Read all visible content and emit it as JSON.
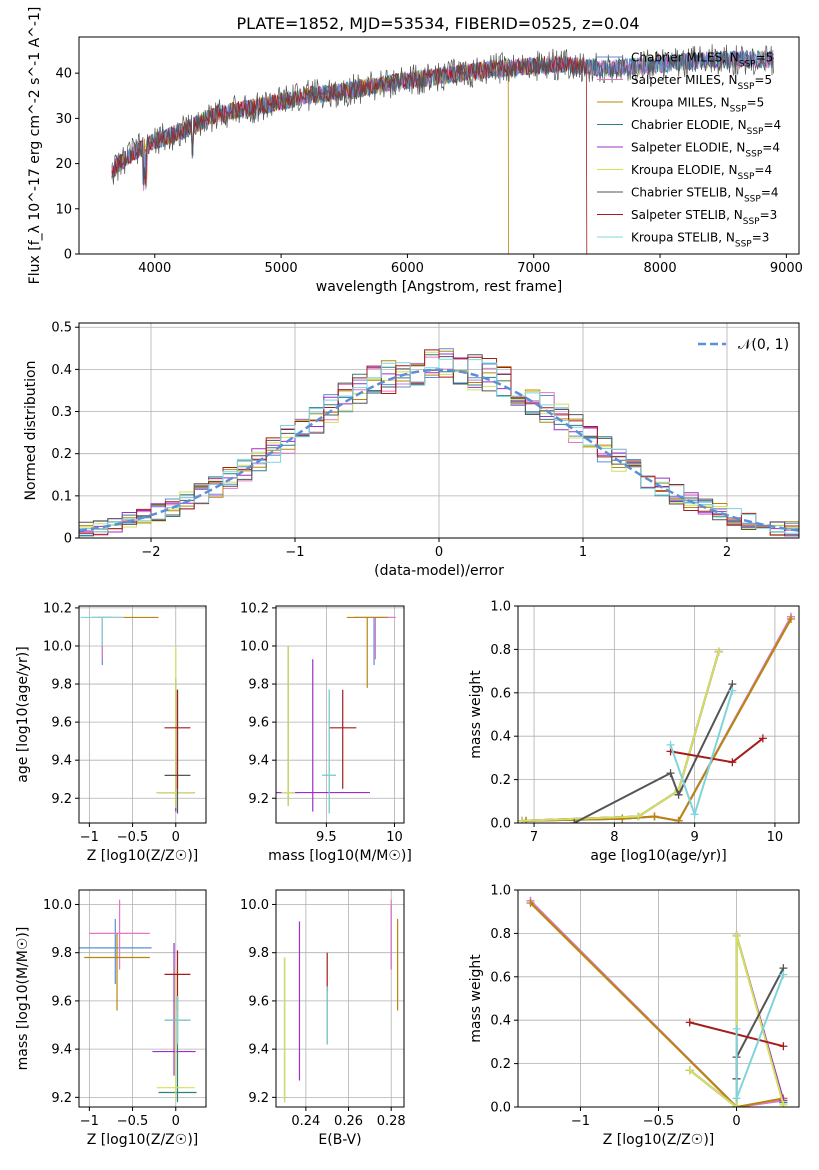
{
  "figure": {
    "title": "PLATE=1852, MJD=53534, FIBERID=0525, z=0.04"
  },
  "models": [
    {
      "name": "Chabrier MILES, N_SSP=5",
      "base": "Chabrier MILES, N",
      "sub": "SSP",
      "tail": "=5",
      "color": "#5b8fd6"
    },
    {
      "name": "Salpeter MILES, N_SSP=5",
      "base": "Salpeter MILES, N",
      "sub": "SSP",
      "tail": "=5",
      "color": "#e377c2"
    },
    {
      "name": "Kroupa MILES, N_SSP=5",
      "base": "Kroupa MILES, N",
      "sub": "SSP",
      "tail": "=5",
      "color": "#b8860b"
    },
    {
      "name": "Chabrier ELODIE, N_SSP=4",
      "base": "Chabrier ELODIE, N",
      "sub": "SSP",
      "tail": "=4",
      "color": "#2f8080"
    },
    {
      "name": "Salpeter ELODIE, N_SSP=4",
      "base": "Salpeter ELODIE, N",
      "sub": "SSP",
      "tail": "=4",
      "color": "#9b30c8"
    },
    {
      "name": "Kroupa ELODIE, N_SSP=4",
      "base": "Kroupa ELODIE, N",
      "sub": "SSP",
      "tail": "=4",
      "color": "#d4e05a"
    },
    {
      "name": "Chabrier STELIB, N_SSP=4",
      "base": "Chabrier STELIB, N",
      "sub": "SSP",
      "tail": "=4",
      "color": "#555555"
    },
    {
      "name": "Salpeter STELIB, N_SSP=3",
      "base": "Salpeter STELIB, N",
      "sub": "SSP",
      "tail": "=3",
      "color": "#a51c1c"
    },
    {
      "name": "Kroupa STELIB, N_SSP=3",
      "base": "Kroupa STELIB, N",
      "sub": "SSP",
      "tail": "=3",
      "color": "#7fd4dc"
    }
  ],
  "chart_data": [
    {
      "type": "line",
      "panel": "spectrum",
      "title": "PLATE=1852, MJD=53534, FIBERID=0525, z=0.04",
      "xlabel": "wavelength [Angstrom, rest frame]",
      "ylabel": "Flux [f_λ 10^-17 erg cm^-2 s^-1 A^-1]",
      "xlim": [
        3400,
        9100
      ],
      "ylim": [
        0,
        48
      ],
      "xticks": [
        4000,
        5000,
        6000,
        7000,
        8000,
        9000
      ],
      "yticks": [
        0,
        10,
        20,
        30,
        40
      ],
      "legend_position": "upper right",
      "continuum": {
        "x": [
          3650,
          3800,
          4000,
          4200,
          4500,
          4900,
          5200,
          5500,
          5900,
          6300,
          6700,
          7200,
          7600,
          8000,
          8400,
          8900
        ],
        "y": [
          18,
          22,
          25,
          27,
          31,
          33,
          35,
          36,
          38,
          39.5,
          41,
          42,
          41,
          42,
          43,
          43
        ]
      },
      "x_end": [
        8900,
        8900,
        6800,
        8900,
        8900,
        8900,
        8900,
        7420,
        8900
      ]
    },
    {
      "type": "line",
      "panel": "residuals",
      "xlabel": "(data-model)/error",
      "ylabel": "Normed distribution",
      "xlim": [
        -2.5,
        2.5
      ],
      "ylim": [
        0,
        0.51
      ],
      "xticks": [
        -2,
        -1,
        0,
        1,
        2
      ],
      "yticks": [
        0.0,
        0.1,
        0.2,
        0.3,
        0.4,
        0.5
      ],
      "legend_position": "upper right",
      "reference_curve": {
        "name": "𝒩(0, 1)",
        "mean": 0,
        "sigma": 1,
        "color": "#5b8fd6"
      },
      "histogram_step": 0.1
    },
    {
      "type": "scatter",
      "panel": "age_vs_Z",
      "xlabel": "Z [log10(Z/Z☉)]",
      "ylabel": "age  [log10(age/yr)]",
      "xlim": [
        -1.12,
        0.35
      ],
      "ylim": [
        9.07,
        10.21
      ],
      "xticks": [
        -1.0,
        -0.5,
        0.0
      ],
      "yticks": [
        9.2,
        9.4,
        9.6,
        9.8,
        10.0,
        10.2
      ],
      "points": [
        {
          "model": 0,
          "x": -0.85,
          "y": 10.15,
          "xerr": 0.12,
          "yerr_lo": 0.25,
          "yerr_hi": 0
        },
        {
          "model": 1,
          "x": -0.85,
          "y": 10.15,
          "xerr": 0.12,
          "yerr_lo": 0.22,
          "yerr_hi": 0
        },
        {
          "model": 2,
          "x": -0.55,
          "y": 10.15,
          "xerr": 0.35,
          "yerr_lo": 0,
          "yerr_hi": 0
        },
        {
          "model": 3,
          "x": 0.0,
          "y": 9.23,
          "xerr": 0.22,
          "yerr_lo": 0.07,
          "yerr_hi": 0.6
        },
        {
          "model": 4,
          "x": 0.0,
          "y": 9.23,
          "xerr": 0.22,
          "yerr_lo": 0.1,
          "yerr_hi": 0.2
        },
        {
          "model": 5,
          "x": 0.0,
          "y": 9.23,
          "xerr": 0.22,
          "yerr_lo": 0.08,
          "yerr_hi": 0.77
        },
        {
          "model": 6,
          "x": 0.02,
          "y": 9.32,
          "xerr": 0.15,
          "yerr_lo": 0.2,
          "yerr_hi": 0.45
        },
        {
          "model": 7,
          "x": 0.02,
          "y": 9.57,
          "xerr": 0.15,
          "yerr_lo": 0.32,
          "yerr_hi": 0.2
        },
        {
          "model": 8,
          "x": -0.85,
          "y": 10.15,
          "xerr": 0.25,
          "yerr_lo": 0.15,
          "yerr_hi": 0
        }
      ]
    },
    {
      "type": "scatter",
      "panel": "age_vs_mass",
      "xlabel": "mass [log10(M/M☉)]",
      "ylabel": "",
      "xlim": [
        9.13,
        10.07
      ],
      "ylim": [
        9.07,
        10.21
      ],
      "xticks": [
        9.5,
        10.0
      ],
      "yticks": [
        9.2,
        9.4,
        9.6,
        9.8,
        10.0,
        10.2
      ],
      "points": [
        {
          "model": 0,
          "x": 9.85,
          "y": 10.15,
          "xerr": 0.15,
          "yerr_lo": 0.25,
          "yerr_hi": 0
        },
        {
          "model": 1,
          "x": 9.86,
          "y": 10.15,
          "xerr": 0.15,
          "yerr_lo": 0.22,
          "yerr_hi": 0
        },
        {
          "model": 2,
          "x": 9.8,
          "y": 10.15,
          "xerr": 0.15,
          "yerr_lo": 0.37,
          "yerr_hi": 0
        },
        {
          "model": 3,
          "x": 9.22,
          "y": 9.23,
          "xerr": 0.08,
          "yerr_lo": 0.07,
          "yerr_hi": 0.77
        },
        {
          "model": 4,
          "x": 9.4,
          "y": 9.23,
          "xerr": 0.42,
          "yerr_lo": 0.1,
          "yerr_hi": 0.7
        },
        {
          "model": 5,
          "x": 9.22,
          "y": 9.23,
          "xerr": 0.05,
          "yerr_lo": 0.07,
          "yerr_hi": 0.77
        },
        {
          "model": 6,
          "x": 9.52,
          "y": 9.32,
          "xerr": 0.05,
          "yerr_lo": 0.2,
          "yerr_hi": 0.45
        },
        {
          "model": 7,
          "x": 9.62,
          "y": 9.57,
          "xerr": 0.1,
          "yerr_lo": 0.32,
          "yerr_hi": 0.2
        },
        {
          "model": 8,
          "x": 9.52,
          "y": 9.32,
          "xerr": 0.05,
          "yerr_lo": 0.2,
          "yerr_hi": 0.45
        }
      ]
    },
    {
      "type": "line",
      "panel": "massweight_vs_age",
      "xlabel": "age  [log10(age/yr)]",
      "ylabel": "mass weight",
      "xlim": [
        6.8,
        10.3
      ],
      "ylim": [
        0,
        1.0
      ],
      "xticks": [
        7,
        8,
        9,
        10
      ],
      "yticks": [
        0.0,
        0.2,
        0.4,
        0.6,
        0.8,
        1.0
      ],
      "series": [
        {
          "model": 0,
          "x": [
            6.9,
            8.1,
            8.5,
            8.8,
            10.2
          ],
          "y": [
            0.01,
            0.02,
            0.03,
            0.01,
            0.95
          ]
        },
        {
          "model": 1,
          "x": [
            6.9,
            8.1,
            8.5,
            8.8,
            10.2
          ],
          "y": [
            0.01,
            0.02,
            0.03,
            0.01,
            0.95
          ]
        },
        {
          "model": 2,
          "x": [
            6.9,
            8.1,
            8.5,
            8.8,
            10.2
          ],
          "y": [
            0.01,
            0.02,
            0.03,
            0.01,
            0.94
          ]
        },
        {
          "model": 3,
          "x": [
            6.85,
            8.3,
            8.8,
            9.3
          ],
          "y": [
            0.01,
            0.03,
            0.15,
            0.79
          ]
        },
        {
          "model": 4,
          "x": [
            6.85,
            8.3,
            8.8,
            9.3
          ],
          "y": [
            0.01,
            0.03,
            0.15,
            0.79
          ]
        },
        {
          "model": 5,
          "x": [
            6.85,
            8.3,
            8.8,
            9.3
          ],
          "y": [
            0.01,
            0.03,
            0.15,
            0.79
          ]
        },
        {
          "model": 6,
          "x": [
            7.5,
            8.7,
            8.8,
            9.47
          ],
          "y": [
            0.0,
            0.23,
            0.13,
            0.64
          ]
        },
        {
          "model": 7,
          "x": [
            8.7,
            9.47,
            9.85
          ],
          "y": [
            0.33,
            0.28,
            0.39
          ]
        },
        {
          "model": 8,
          "x": [
            8.7,
            9.0,
            9.47
          ],
          "y": [
            0.36,
            0.04,
            0.61
          ]
        }
      ]
    },
    {
      "type": "scatter",
      "panel": "mass_vs_Z",
      "xlabel": "Z [log10(Z/Z☉)]",
      "ylabel": "mass [log10(M/M☉)]",
      "xlim": [
        -1.12,
        0.35
      ],
      "ylim": [
        9.16,
        10.06
      ],
      "xticks": [
        -1.0,
        -0.5,
        0.0
      ],
      "yticks": [
        9.2,
        9.4,
        9.6,
        9.8,
        10.0
      ],
      "points": [
        {
          "model": 0,
          "x": -0.7,
          "y": 9.82,
          "xerr": 0.42,
          "yerr_lo": 0.15,
          "yerr_hi": 0.12
        },
        {
          "model": 1,
          "x": -0.65,
          "y": 9.88,
          "xerr": 0.35,
          "yerr_lo": 0.15,
          "yerr_hi": 0.14
        },
        {
          "model": 2,
          "x": -0.68,
          "y": 9.78,
          "xerr": 0.38,
          "yerr_lo": 0.22,
          "yerr_hi": 0.1
        },
        {
          "model": 3,
          "x": 0.02,
          "y": 9.22,
          "xerr": 0.22,
          "yerr_lo": 0.04,
          "yerr_hi": 0.4
        },
        {
          "model": 4,
          "x": -0.02,
          "y": 9.39,
          "xerr": 0.25,
          "yerr_lo": 0.1,
          "yerr_hi": 0.45
        },
        {
          "model": 5,
          "x": 0.0,
          "y": 9.24,
          "xerr": 0.22,
          "yerr_lo": 0.05,
          "yerr_hi": 0.5
        },
        {
          "model": 6,
          "x": 0.02,
          "y": 9.52,
          "xerr": 0.15,
          "yerr_lo": 0.1,
          "yerr_hi": 0.1
        },
        {
          "model": 7,
          "x": 0.02,
          "y": 9.71,
          "xerr": 0.15,
          "yerr_lo": 0.15,
          "yerr_hi": 0.1
        },
        {
          "model": 8,
          "x": 0.02,
          "y": 9.52,
          "xerr": 0.15,
          "yerr_lo": 0.1,
          "yerr_hi": 0.1
        }
      ]
    },
    {
      "type": "scatter",
      "panel": "mass_vs_EBV",
      "xlabel": "E(B-V)",
      "ylabel": "",
      "xlim": [
        0.226,
        0.286
      ],
      "ylim": [
        9.16,
        10.06
      ],
      "xticks": [
        0.24,
        0.26,
        0.28
      ],
      "yticks": [
        9.2,
        9.4,
        9.6,
        9.8,
        10.0
      ],
      "points": [
        {
          "model": 0,
          "x": 0.28,
          "y": 9.88,
          "yerr_lo": 0.15,
          "yerr_hi": 0.12
        },
        {
          "model": 1,
          "x": 0.28,
          "y": 9.88,
          "yerr_lo": 0.15,
          "yerr_hi": 0.14
        },
        {
          "model": 2,
          "x": 0.283,
          "y": 9.76,
          "yerr_lo": 0.2,
          "yerr_hi": 0.18
        },
        {
          "model": 3,
          "x": 0.23,
          "y": 9.48,
          "yerr_lo": 0.3,
          "yerr_hi": 0.3
        },
        {
          "model": 4,
          "x": 0.237,
          "y": 9.6,
          "yerr_lo": 0.33,
          "yerr_hi": 0.33
        },
        {
          "model": 5,
          "x": 0.23,
          "y": 9.48,
          "yerr_lo": 0.3,
          "yerr_hi": 0.3
        },
        {
          "model": 6,
          "x": 0.25,
          "y": 9.54,
          "yerr_lo": 0.12,
          "yerr_hi": 0.12
        },
        {
          "model": 7,
          "x": 0.25,
          "y": 9.72,
          "yerr_lo": 0.08,
          "yerr_hi": 0.08
        },
        {
          "model": 8,
          "x": 0.25,
          "y": 9.54,
          "yerr_lo": 0.12,
          "yerr_hi": 0.12
        }
      ]
    },
    {
      "type": "line",
      "panel": "massweight_vs_Z",
      "xlabel": "Z [log10(Z/Z☉)]",
      "ylabel": "mass weight",
      "xlim": [
        -1.4,
        0.4
      ],
      "ylim": [
        0,
        1.0
      ],
      "xticks": [
        -1.0,
        -0.5,
        0.0
      ],
      "yticks": [
        0.0,
        0.2,
        0.4,
        0.6,
        0.8,
        1.0
      ],
      "series": [
        {
          "model": 0,
          "x": [
            -1.32,
            0.0,
            0.3
          ],
          "y": [
            0.95,
            0.0,
            0.03
          ]
        },
        {
          "model": 1,
          "x": [
            -1.32,
            0.0,
            0.3
          ],
          "y": [
            0.95,
            0.0,
            0.03
          ]
        },
        {
          "model": 2,
          "x": [
            -1.32,
            0.0,
            0.3
          ],
          "y": [
            0.94,
            0.0,
            0.04
          ]
        },
        {
          "model": 3,
          "x": [
            -0.3,
            0.0,
            0.0,
            0.3
          ],
          "y": [
            0.17,
            0.0,
            0.79,
            0.02
          ]
        },
        {
          "model": 4,
          "x": [
            -0.3,
            0.0,
            0.0,
            0.3
          ],
          "y": [
            0.17,
            0.0,
            0.79,
            0.03
          ]
        },
        {
          "model": 5,
          "x": [
            -0.3,
            0.0,
            0.0,
            0.3
          ],
          "y": [
            0.17,
            0.0,
            0.79,
            0.01
          ]
        },
        {
          "model": 6,
          "x": [
            0.0,
            0.0,
            0.3
          ],
          "y": [
            0.13,
            0.23,
            0.64
          ]
        },
        {
          "model": 7,
          "x": [
            -0.3,
            0.3
          ],
          "y": [
            0.39,
            0.28
          ]
        },
        {
          "model": 8,
          "x": [
            0.0,
            0.0,
            0.3
          ],
          "y": [
            0.36,
            0.04,
            0.61
          ]
        }
      ]
    }
  ]
}
